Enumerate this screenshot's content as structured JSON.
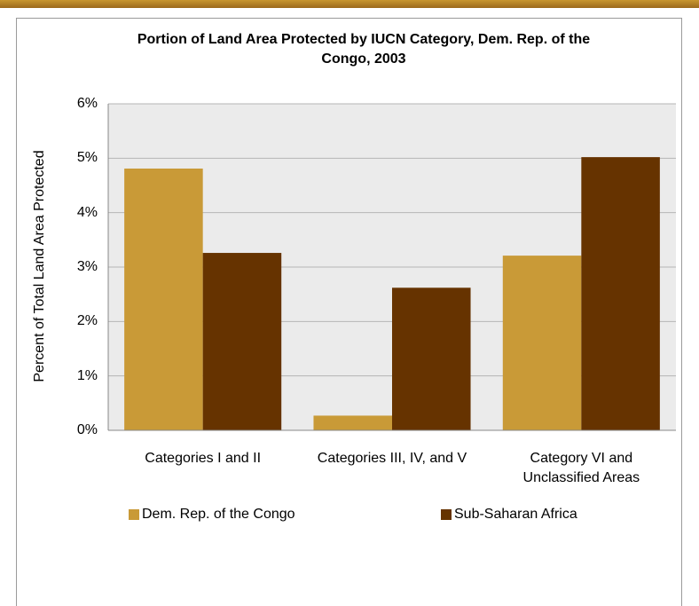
{
  "chart_data": {
    "type": "bar",
    "title": "Portion of Land Area Protected by IUCN Category, Dem. Rep. of the Congo, 2003",
    "y_label": "Percent of Total Land Area Protected",
    "categories": [
      "Categories I and II",
      "Categories III, IV, and V",
      "Category VI and Unclassified Areas"
    ],
    "series": [
      {
        "name": "Dem. Rep. of the Congo",
        "color": "#c99a37",
        "values": [
          4.81,
          0.27,
          3.21
        ]
      },
      {
        "name": "Sub-Saharan Africa",
        "color": "#663300",
        "values": [
          3.26,
          2.62,
          5.02
        ]
      }
    ],
    "ylim": [
      0,
      6
    ],
    "yticks": [
      {
        "value": 0,
        "label": "0%"
      },
      {
        "value": 1,
        "label": "1%"
      },
      {
        "value": 2,
        "label": "2%"
      },
      {
        "value": 3,
        "label": "3%"
      },
      {
        "value": 4,
        "label": "4%"
      },
      {
        "value": 5,
        "label": "5%"
      },
      {
        "value": 6,
        "label": "6%"
      }
    ],
    "grid": true
  }
}
